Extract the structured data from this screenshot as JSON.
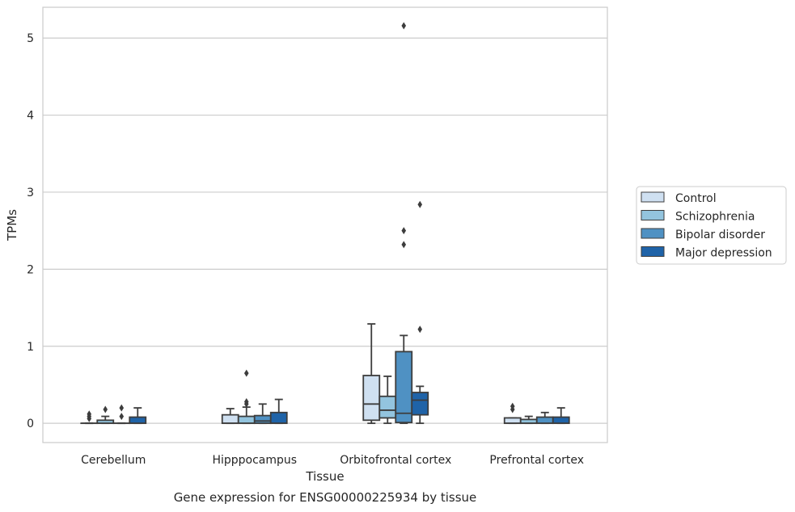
{
  "chart_data": {
    "type": "box",
    "title": "",
    "caption": "Gene expression for ENSG00000225934 by tissue",
    "xlabel": "Tissue",
    "ylabel": "TPMs",
    "ylim": [
      -0.25,
      5.4
    ],
    "yticks": [
      0,
      1,
      2,
      3,
      4,
      5
    ],
    "grid": "horizontal",
    "legend_position": "right",
    "categories": [
      "Cerebellum",
      "Hipppocampus",
      "Orbitofrontal cortex",
      "Prefrontal cortex"
    ],
    "series": [
      {
        "name": "Control",
        "color": "#cfe0f1",
        "boxes": [
          {
            "whislo": 0.0,
            "q1": 0.0,
            "med": 0.0,
            "q3": 0.0,
            "whishi": 0.0,
            "fliers": [
              0.06,
              0.09,
              0.12
            ]
          },
          {
            "whislo": 0.0,
            "q1": 0.0,
            "med": 0.0,
            "q3": 0.11,
            "whishi": 0.19,
            "fliers": []
          },
          {
            "whislo": 0.0,
            "q1": 0.04,
            "med": 0.25,
            "q3": 0.62,
            "whishi": 1.29,
            "fliers": []
          },
          {
            "whislo": 0.0,
            "q1": 0.0,
            "med": 0.0,
            "q3": 0.07,
            "whishi": 0.07,
            "fliers": [
              0.18,
              0.22
            ]
          }
        ]
      },
      {
        "name": "Schizophrenia",
        "color": "#93c4de",
        "boxes": [
          {
            "whislo": 0.0,
            "q1": 0.0,
            "med": 0.0,
            "q3": 0.04,
            "whishi": 0.09,
            "fliers": [
              0.18
            ]
          },
          {
            "whislo": 0.0,
            "q1": 0.0,
            "med": 0.0,
            "q3": 0.09,
            "whishi": 0.21,
            "fliers": [
              0.25,
              0.28,
              0.65
            ]
          },
          {
            "whislo": 0.0,
            "q1": 0.07,
            "med": 0.17,
            "q3": 0.35,
            "whishi": 0.61,
            "fliers": []
          },
          {
            "whislo": 0.0,
            "q1": 0.0,
            "med": 0.0,
            "q3": 0.05,
            "whishi": 0.09,
            "fliers": []
          }
        ]
      },
      {
        "name": "Bipolar disorder",
        "color": "#4f91c3",
        "boxes": [
          {
            "whislo": 0.0,
            "q1": 0.0,
            "med": 0.0,
            "q3": 0.0,
            "whishi": 0.0,
            "fliers": [
              0.09,
              0.2
            ]
          },
          {
            "whislo": 0.0,
            "q1": 0.0,
            "med": 0.03,
            "q3": 0.1,
            "whishi": 0.25,
            "fliers": []
          },
          {
            "whislo": 0.0,
            "q1": 0.01,
            "med": 0.13,
            "q3": 0.93,
            "whishi": 1.14,
            "fliers": [
              2.32,
              2.5,
              5.16
            ]
          },
          {
            "whislo": 0.0,
            "q1": 0.0,
            "med": 0.0,
            "q3": 0.08,
            "whishi": 0.14,
            "fliers": []
          }
        ]
      },
      {
        "name": "Major depression",
        "color": "#1f63a8",
        "boxes": [
          {
            "whislo": 0.0,
            "q1": 0.0,
            "med": 0.0,
            "q3": 0.08,
            "whishi": 0.2,
            "fliers": []
          },
          {
            "whislo": 0.0,
            "q1": 0.0,
            "med": 0.0,
            "q3": 0.14,
            "whishi": 0.31,
            "fliers": []
          },
          {
            "whislo": 0.0,
            "q1": 0.11,
            "med": 0.3,
            "q3": 0.4,
            "whishi": 0.48,
            "fliers": [
              1.22,
              2.84
            ]
          },
          {
            "whislo": 0.0,
            "q1": 0.0,
            "med": 0.0,
            "q3": 0.08,
            "whishi": 0.2,
            "fliers": []
          }
        ]
      }
    ]
  }
}
